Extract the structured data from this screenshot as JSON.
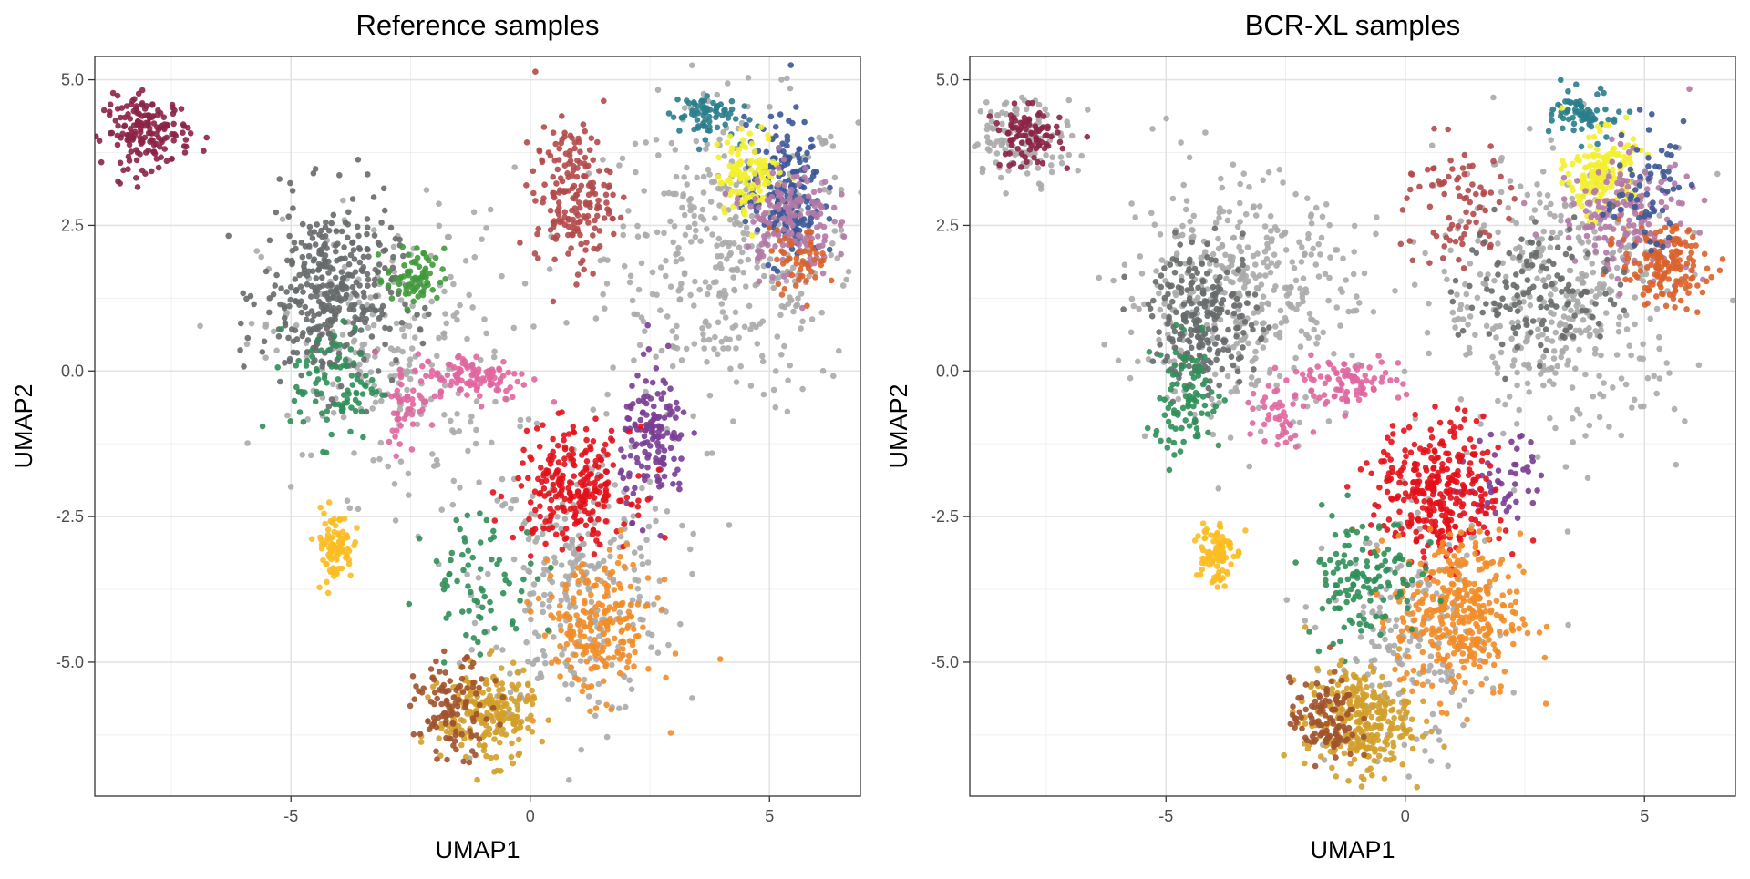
{
  "chart_data": [
    {
      "type": "scatter",
      "title": "Reference samples",
      "xlabel": "UMAP1",
      "ylabel": "UMAP2",
      "xlim": [
        -9.1,
        6.9
      ],
      "ylim": [
        -7.3,
        5.4
      ],
      "xticks": [
        -5,
        0,
        5
      ],
      "yticks": [
        5.0,
        2.5,
        0.0,
        -2.5,
        -5.0
      ],
      "xtick_labels": [
        "-5",
        "0",
        "5"
      ],
      "ytick_labels": [
        "5.0",
        "2.5",
        "0.0",
        "-2.5",
        "-5.0"
      ],
      "grid": true,
      "legend": "none",
      "clusters": [
        {
          "color": "#8b2346",
          "cx": -8.0,
          "cy": 4.1,
          "sx": 0.45,
          "sy": 0.3,
          "n": 170
        },
        {
          "color": "#666a6a",
          "cx": -4.2,
          "cy": 1.3,
          "sx": 0.7,
          "sy": 0.8,
          "n": 380
        },
        {
          "color": "#3f9a3a",
          "cx": -2.4,
          "cy": 1.6,
          "sx": 0.3,
          "sy": 0.25,
          "n": 70
        },
        {
          "color": "#2f8f58",
          "cx": -4.1,
          "cy": -0.2,
          "sx": 0.45,
          "sy": 0.5,
          "n": 90
        },
        {
          "color": "#e066a0",
          "cx": -1.2,
          "cy": -0.1,
          "sx": 0.6,
          "sy": 0.2,
          "n": 110
        },
        {
          "color": "#e066a0",
          "cx": -2.6,
          "cy": -0.6,
          "sx": 0.2,
          "sy": 0.4,
          "n": 40
        },
        {
          "color": "#fbbd22",
          "cx": -4.1,
          "cy": -3.0,
          "sx": 0.2,
          "sy": 0.3,
          "n": 90
        },
        {
          "color": "#b2494a",
          "cx": 0.9,
          "cy": 3.0,
          "sx": 0.4,
          "sy": 0.6,
          "n": 190
        },
        {
          "color": "#2a7d8c",
          "cx": 3.6,
          "cy": 4.4,
          "sx": 0.35,
          "sy": 0.2,
          "n": 70
        },
        {
          "color": "#3b5697",
          "cx": 5.3,
          "cy": 3.1,
          "sx": 0.4,
          "sy": 0.6,
          "n": 200
        },
        {
          "color": "#f3f030",
          "cx": 4.6,
          "cy": 3.4,
          "sx": 0.35,
          "sy": 0.35,
          "n": 110
        },
        {
          "color": "#b279a6",
          "cx": 5.4,
          "cy": 2.6,
          "sx": 0.45,
          "sy": 0.5,
          "n": 150
        },
        {
          "color": "#d9622b",
          "cx": 5.6,
          "cy": 1.9,
          "sx": 0.3,
          "sy": 0.25,
          "n": 50
        },
        {
          "color": "#7a3d94",
          "cx": 2.6,
          "cy": -1.2,
          "sx": 0.35,
          "sy": 0.6,
          "n": 150
        },
        {
          "color": "#e3111a",
          "cx": 0.9,
          "cy": -2.0,
          "sx": 0.6,
          "sy": 0.5,
          "n": 240
        },
        {
          "color": "#f28c28",
          "cx": 1.4,
          "cy": -4.4,
          "sx": 0.6,
          "sy": 0.6,
          "n": 210
        },
        {
          "color": "#d19f2a",
          "cx": -0.9,
          "cy": -5.9,
          "sx": 0.5,
          "sy": 0.4,
          "n": 220
        },
        {
          "color": "#a0522d",
          "cx": -1.6,
          "cy": -5.8,
          "sx": 0.4,
          "sy": 0.4,
          "n": 110
        },
        {
          "color": "#2f8f58",
          "cx": -1.0,
          "cy": -3.6,
          "sx": 0.6,
          "sy": 0.6,
          "n": 70
        },
        {
          "color": "#aaaaaa",
          "cx": 4.2,
          "cy": 2.0,
          "sx": 1.3,
          "sy": 1.3,
          "n": 420
        },
        {
          "color": "#aaaaaa",
          "cx": 1.0,
          "cy": -3.6,
          "sx": 1.0,
          "sy": 1.2,
          "n": 320
        },
        {
          "color": "#aaaaaa",
          "cx": -3.0,
          "cy": 0.3,
          "sx": 1.3,
          "sy": 1.2,
          "n": 260
        }
      ]
    },
    {
      "type": "scatter",
      "title": "BCR-XL samples",
      "xlabel": "UMAP1",
      "ylabel": "UMAP2",
      "xlim": [
        -9.1,
        6.9
      ],
      "ylim": [
        -7.3,
        5.4
      ],
      "xticks": [
        -5,
        0,
        5
      ],
      "yticks": [
        5.0,
        2.5,
        0.0,
        -2.5,
        -5.0
      ],
      "xtick_labels": [
        "-5",
        "0",
        "5"
      ],
      "ytick_labels": [
        "5.0",
        "2.5",
        "0.0",
        "-2.5",
        "-5.0"
      ],
      "grid": true,
      "legend": "none",
      "clusters": [
        {
          "color": "#aaaaaa",
          "cx": -8.0,
          "cy": 4.0,
          "sx": 0.55,
          "sy": 0.35,
          "n": 120
        },
        {
          "color": "#8b2346",
          "cx": -7.9,
          "cy": 4.0,
          "sx": 0.35,
          "sy": 0.25,
          "n": 90
        },
        {
          "color": "#aaaaaa",
          "cx": -3.5,
          "cy": 1.3,
          "sx": 1.2,
          "sy": 1.0,
          "n": 420
        },
        {
          "color": "#666a6a",
          "cx": -4.2,
          "cy": 0.9,
          "sx": 0.55,
          "sy": 0.6,
          "n": 230
        },
        {
          "color": "#2f8f58",
          "cx": -4.6,
          "cy": -0.5,
          "sx": 0.4,
          "sy": 0.5,
          "n": 90
        },
        {
          "color": "#e066a0",
          "cx": -1.3,
          "cy": -0.2,
          "sx": 0.6,
          "sy": 0.2,
          "n": 90
        },
        {
          "color": "#e066a0",
          "cx": -2.6,
          "cy": -0.7,
          "sx": 0.25,
          "sy": 0.3,
          "n": 40
        },
        {
          "color": "#fbbd22",
          "cx": -4.0,
          "cy": -3.1,
          "sx": 0.2,
          "sy": 0.3,
          "n": 90
        },
        {
          "color": "#b2494a",
          "cx": 1.0,
          "cy": 2.8,
          "sx": 0.6,
          "sy": 0.6,
          "n": 80
        },
        {
          "color": "#2a7d8c",
          "cx": 3.8,
          "cy": 4.4,
          "sx": 0.35,
          "sy": 0.2,
          "n": 70
        },
        {
          "color": "#f3f030",
          "cx": 4.1,
          "cy": 3.4,
          "sx": 0.35,
          "sy": 0.35,
          "n": 160
        },
        {
          "color": "#b279a6",
          "cx": 4.6,
          "cy": 2.7,
          "sx": 0.7,
          "sy": 0.5,
          "n": 160
        },
        {
          "color": "#d9622b",
          "cx": 5.4,
          "cy": 1.8,
          "sx": 0.45,
          "sy": 0.35,
          "n": 160
        },
        {
          "color": "#3b5697",
          "cx": 5.0,
          "cy": 3.2,
          "sx": 0.4,
          "sy": 0.5,
          "n": 60
        },
        {
          "color": "#666a6a",
          "cx": 2.8,
          "cy": 1.4,
          "sx": 0.8,
          "sy": 0.6,
          "n": 130
        },
        {
          "color": "#aaaaaa",
          "cx": 3.3,
          "cy": 1.3,
          "sx": 1.3,
          "sy": 1.2,
          "n": 420
        },
        {
          "color": "#7a3d94",
          "cx": 2.1,
          "cy": -1.8,
          "sx": 0.4,
          "sy": 0.4,
          "n": 50
        },
        {
          "color": "#e3111a",
          "cx": 0.7,
          "cy": -2.1,
          "sx": 0.65,
          "sy": 0.6,
          "n": 320
        },
        {
          "color": "#f28c28",
          "cx": 1.1,
          "cy": -4.2,
          "sx": 0.65,
          "sy": 0.7,
          "n": 360
        },
        {
          "color": "#2f8f58",
          "cx": -0.9,
          "cy": -3.5,
          "sx": 0.6,
          "sy": 0.55,
          "n": 130
        },
        {
          "color": "#d19f2a",
          "cx": -1.0,
          "cy": -6.0,
          "sx": 0.55,
          "sy": 0.45,
          "n": 300
        },
        {
          "color": "#a0522d",
          "cx": -1.7,
          "cy": -6.0,
          "sx": 0.35,
          "sy": 0.35,
          "n": 110
        },
        {
          "color": "#aaaaaa",
          "cx": 0.2,
          "cy": -4.7,
          "sx": 0.9,
          "sy": 1.0,
          "n": 200
        }
      ]
    }
  ]
}
